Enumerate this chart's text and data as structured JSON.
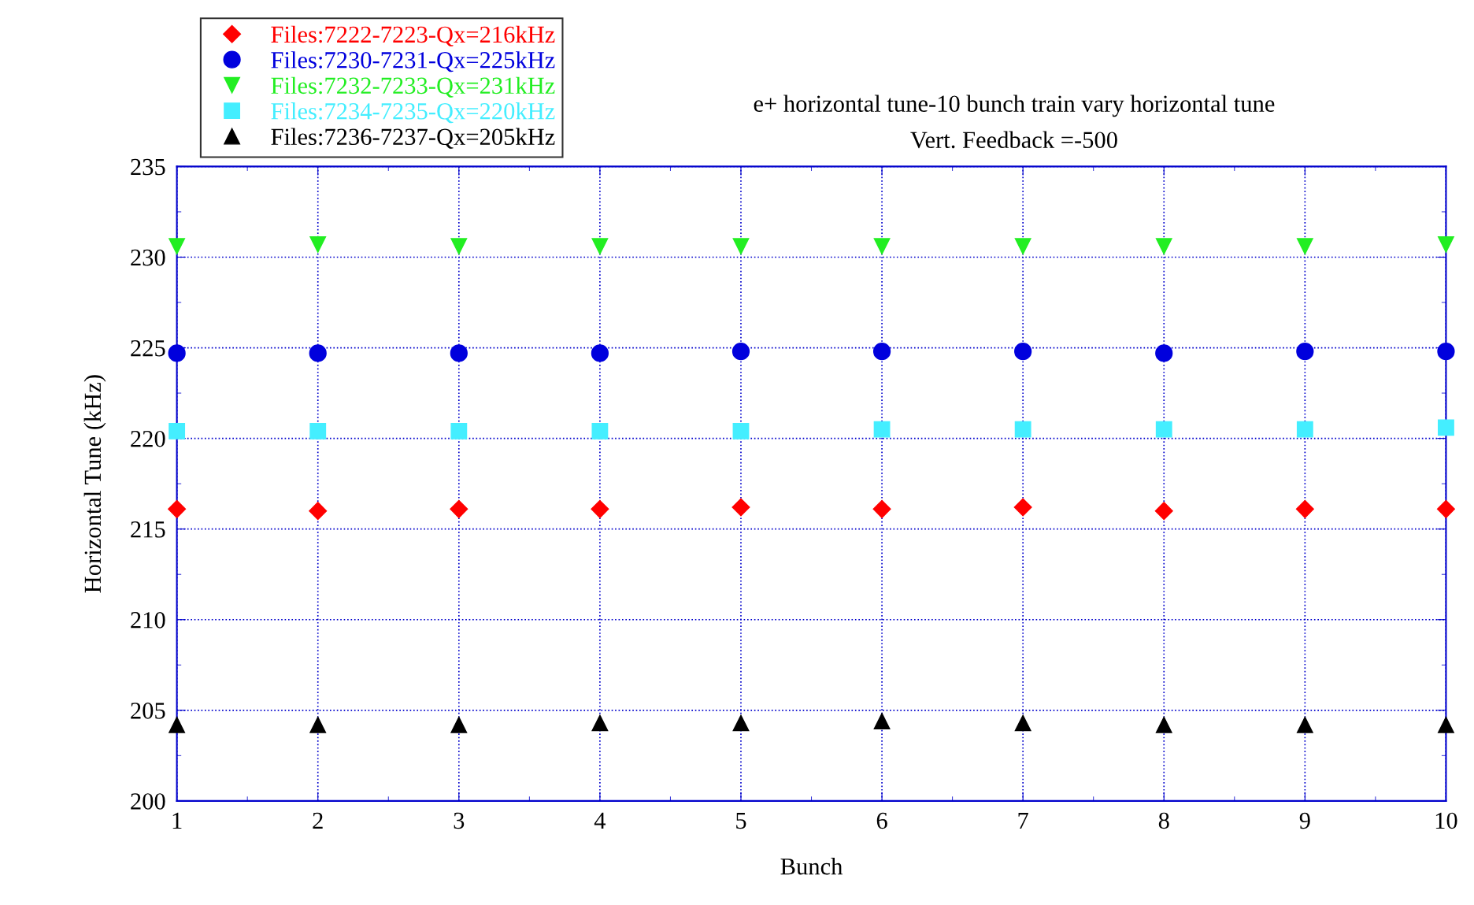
{
  "chart_data": {
    "type": "scatter",
    "title": "e+ horizontal tune-10 bunch train vary horizontal tune",
    "subtitle": "Vert. Feedback =-500",
    "xlabel": "Bunch",
    "ylabel": "Horizontal Tune (kHz)",
    "x": [
      1,
      2,
      3,
      4,
      5,
      6,
      7,
      8,
      9,
      10
    ],
    "series": [
      {
        "name": "Files:7222-7223-Qx=216kHz",
        "color": "#ff0000",
        "marker": "diamond",
        "values": [
          216.1,
          216.0,
          216.1,
          216.1,
          216.2,
          216.1,
          216.2,
          216.0,
          216.1,
          216.1
        ]
      },
      {
        "name": "Files:7230-7231-Qx=225kHz",
        "color": "#0000dd",
        "marker": "circle",
        "values": [
          224.7,
          224.7,
          224.7,
          224.7,
          224.8,
          224.8,
          224.8,
          224.7,
          224.8,
          224.8
        ]
      },
      {
        "name": "Files:7232-7233-Qx=231kHz",
        "color": "#22ee22",
        "marker": "triangle_down",
        "values": [
          230.6,
          230.7,
          230.6,
          230.6,
          230.6,
          230.6,
          230.6,
          230.6,
          230.6,
          230.7
        ]
      },
      {
        "name": "Files:7234-7235-Qx=220kHz",
        "color": "#44eeff",
        "marker": "square",
        "values": [
          220.4,
          220.4,
          220.4,
          220.4,
          220.4,
          220.5,
          220.5,
          220.5,
          220.5,
          220.6
        ]
      },
      {
        "name": "Files:7236-7237-Qx=205kHz",
        "color": "#000000",
        "marker": "triangle",
        "values": [
          204.2,
          204.2,
          204.2,
          204.3,
          204.3,
          204.4,
          204.3,
          204.2,
          204.2,
          204.2
        ]
      }
    ],
    "xlim": [
      1,
      10
    ],
    "xticks": [
      1,
      2,
      3,
      4,
      5,
      6,
      7,
      8,
      9,
      10
    ],
    "ylim": [
      200,
      235
    ],
    "yticks": [
      200,
      205,
      210,
      215,
      220,
      225,
      230,
      235
    ],
    "grid": true,
    "legend": "top left"
  }
}
